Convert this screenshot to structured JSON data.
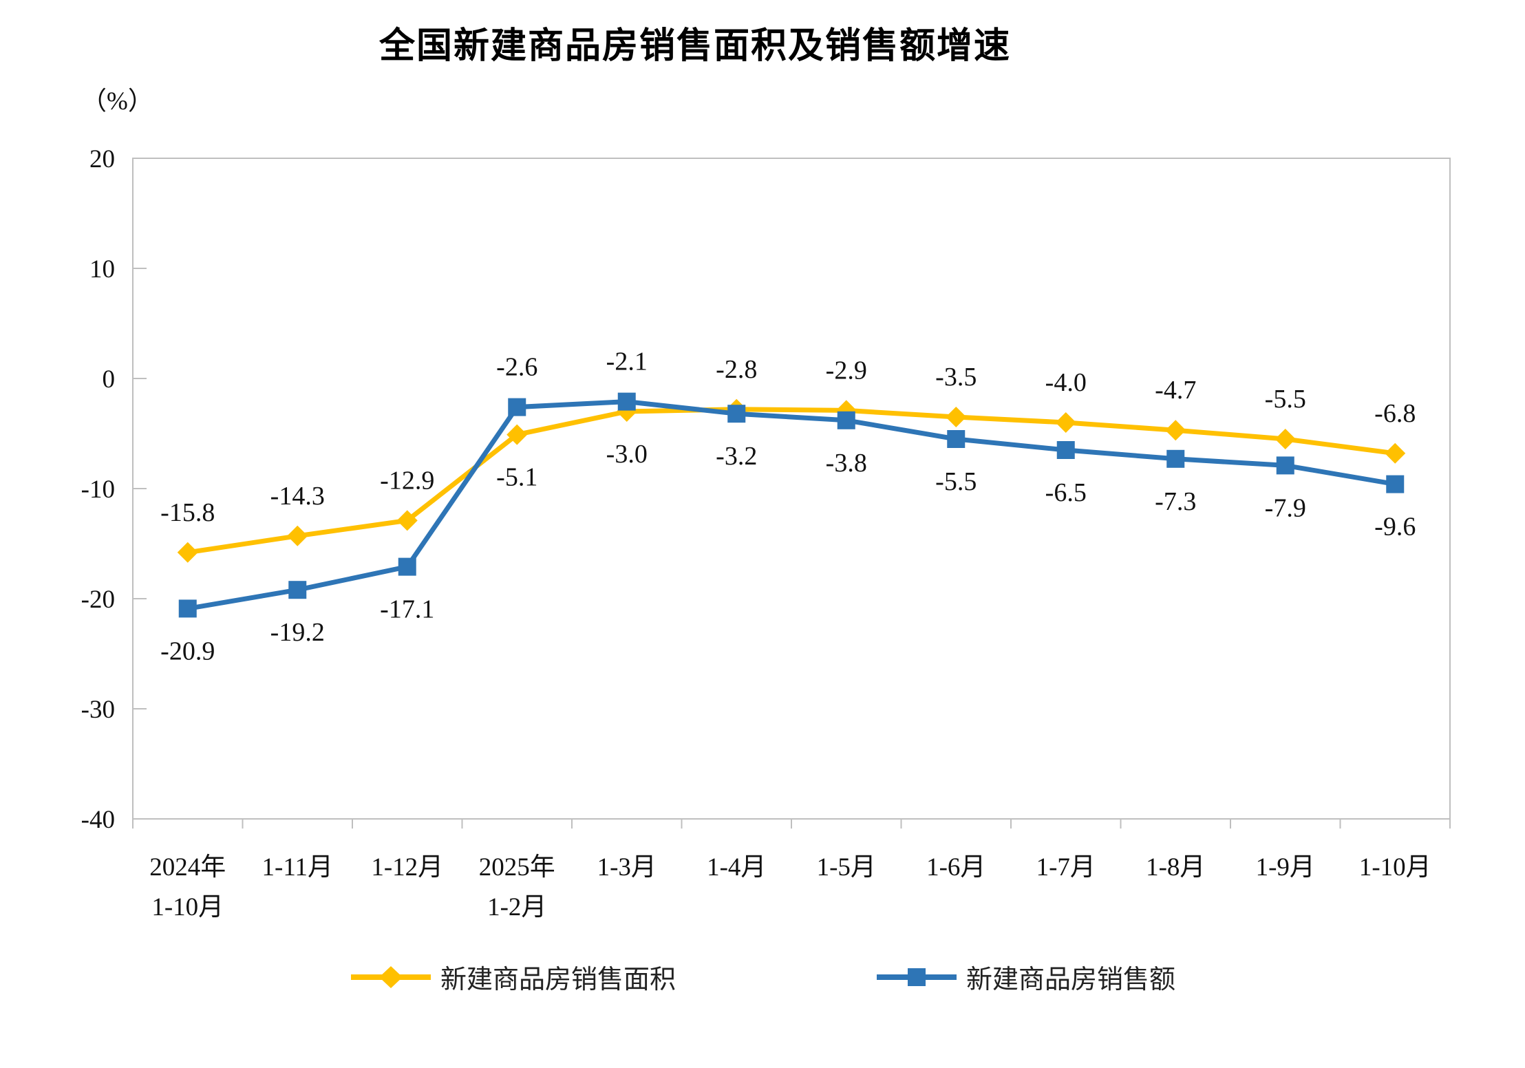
{
  "chart_data": {
    "type": "line",
    "title": "全国新建商品房销售面积及销售额增速",
    "ylabel": "（%）",
    "xlabel": "",
    "ylim": [
      -40,
      20
    ],
    "yticks": [
      20,
      10,
      0,
      -10,
      -20,
      -30,
      -40
    ],
    "grid": false,
    "legend_position": "bottom",
    "axis_color": "#BFBFBF",
    "label_color": "#111111",
    "categories": [
      "2024年\n1-10月",
      "1-11月",
      "1-12月",
      "2025年\n1-2月",
      "1-3月",
      "1-4月",
      "1-5月",
      "1-6月",
      "1-7月",
      "1-8月",
      "1-9月",
      "1-10月"
    ],
    "series": [
      {
        "name": "新建商品房销售面积",
        "color": "#FFC000",
        "marker": "diamond",
        "values": [
          -15.8,
          -14.3,
          -12.9,
          -5.1,
          -3.0,
          -2.8,
          -2.9,
          -3.5,
          -4.0,
          -4.7,
          -5.5,
          -6.8
        ],
        "labels": [
          "-15.8",
          "-14.3",
          "-12.9",
          "-5.1",
          "-3.0",
          "-2.8",
          "-2.9",
          "-3.5",
          "-4.0",
          "-4.7",
          "-5.5",
          "-6.8"
        ],
        "label_side": [
          "above",
          "above",
          "above",
          "below",
          "below",
          "above",
          "above",
          "above",
          "above",
          "above",
          "above",
          "above"
        ]
      },
      {
        "name": "新建商品房销售额",
        "color": "#2E75B6",
        "marker": "square",
        "values": [
          -20.9,
          -19.2,
          -17.1,
          -2.6,
          -2.1,
          -3.2,
          -3.8,
          -5.5,
          -6.5,
          -7.3,
          -7.9,
          -9.6
        ],
        "labels": [
          "-20.9",
          "-19.2",
          "-17.1",
          "-2.6",
          "-2.1",
          "-3.2",
          "-3.8",
          "-5.5",
          "-6.5",
          "-7.3",
          "-7.9",
          "-9.6"
        ],
        "label_side": [
          "below",
          "below",
          "below",
          "above",
          "above",
          "below",
          "below",
          "below",
          "below",
          "below",
          "below",
          "below"
        ]
      }
    ]
  }
}
